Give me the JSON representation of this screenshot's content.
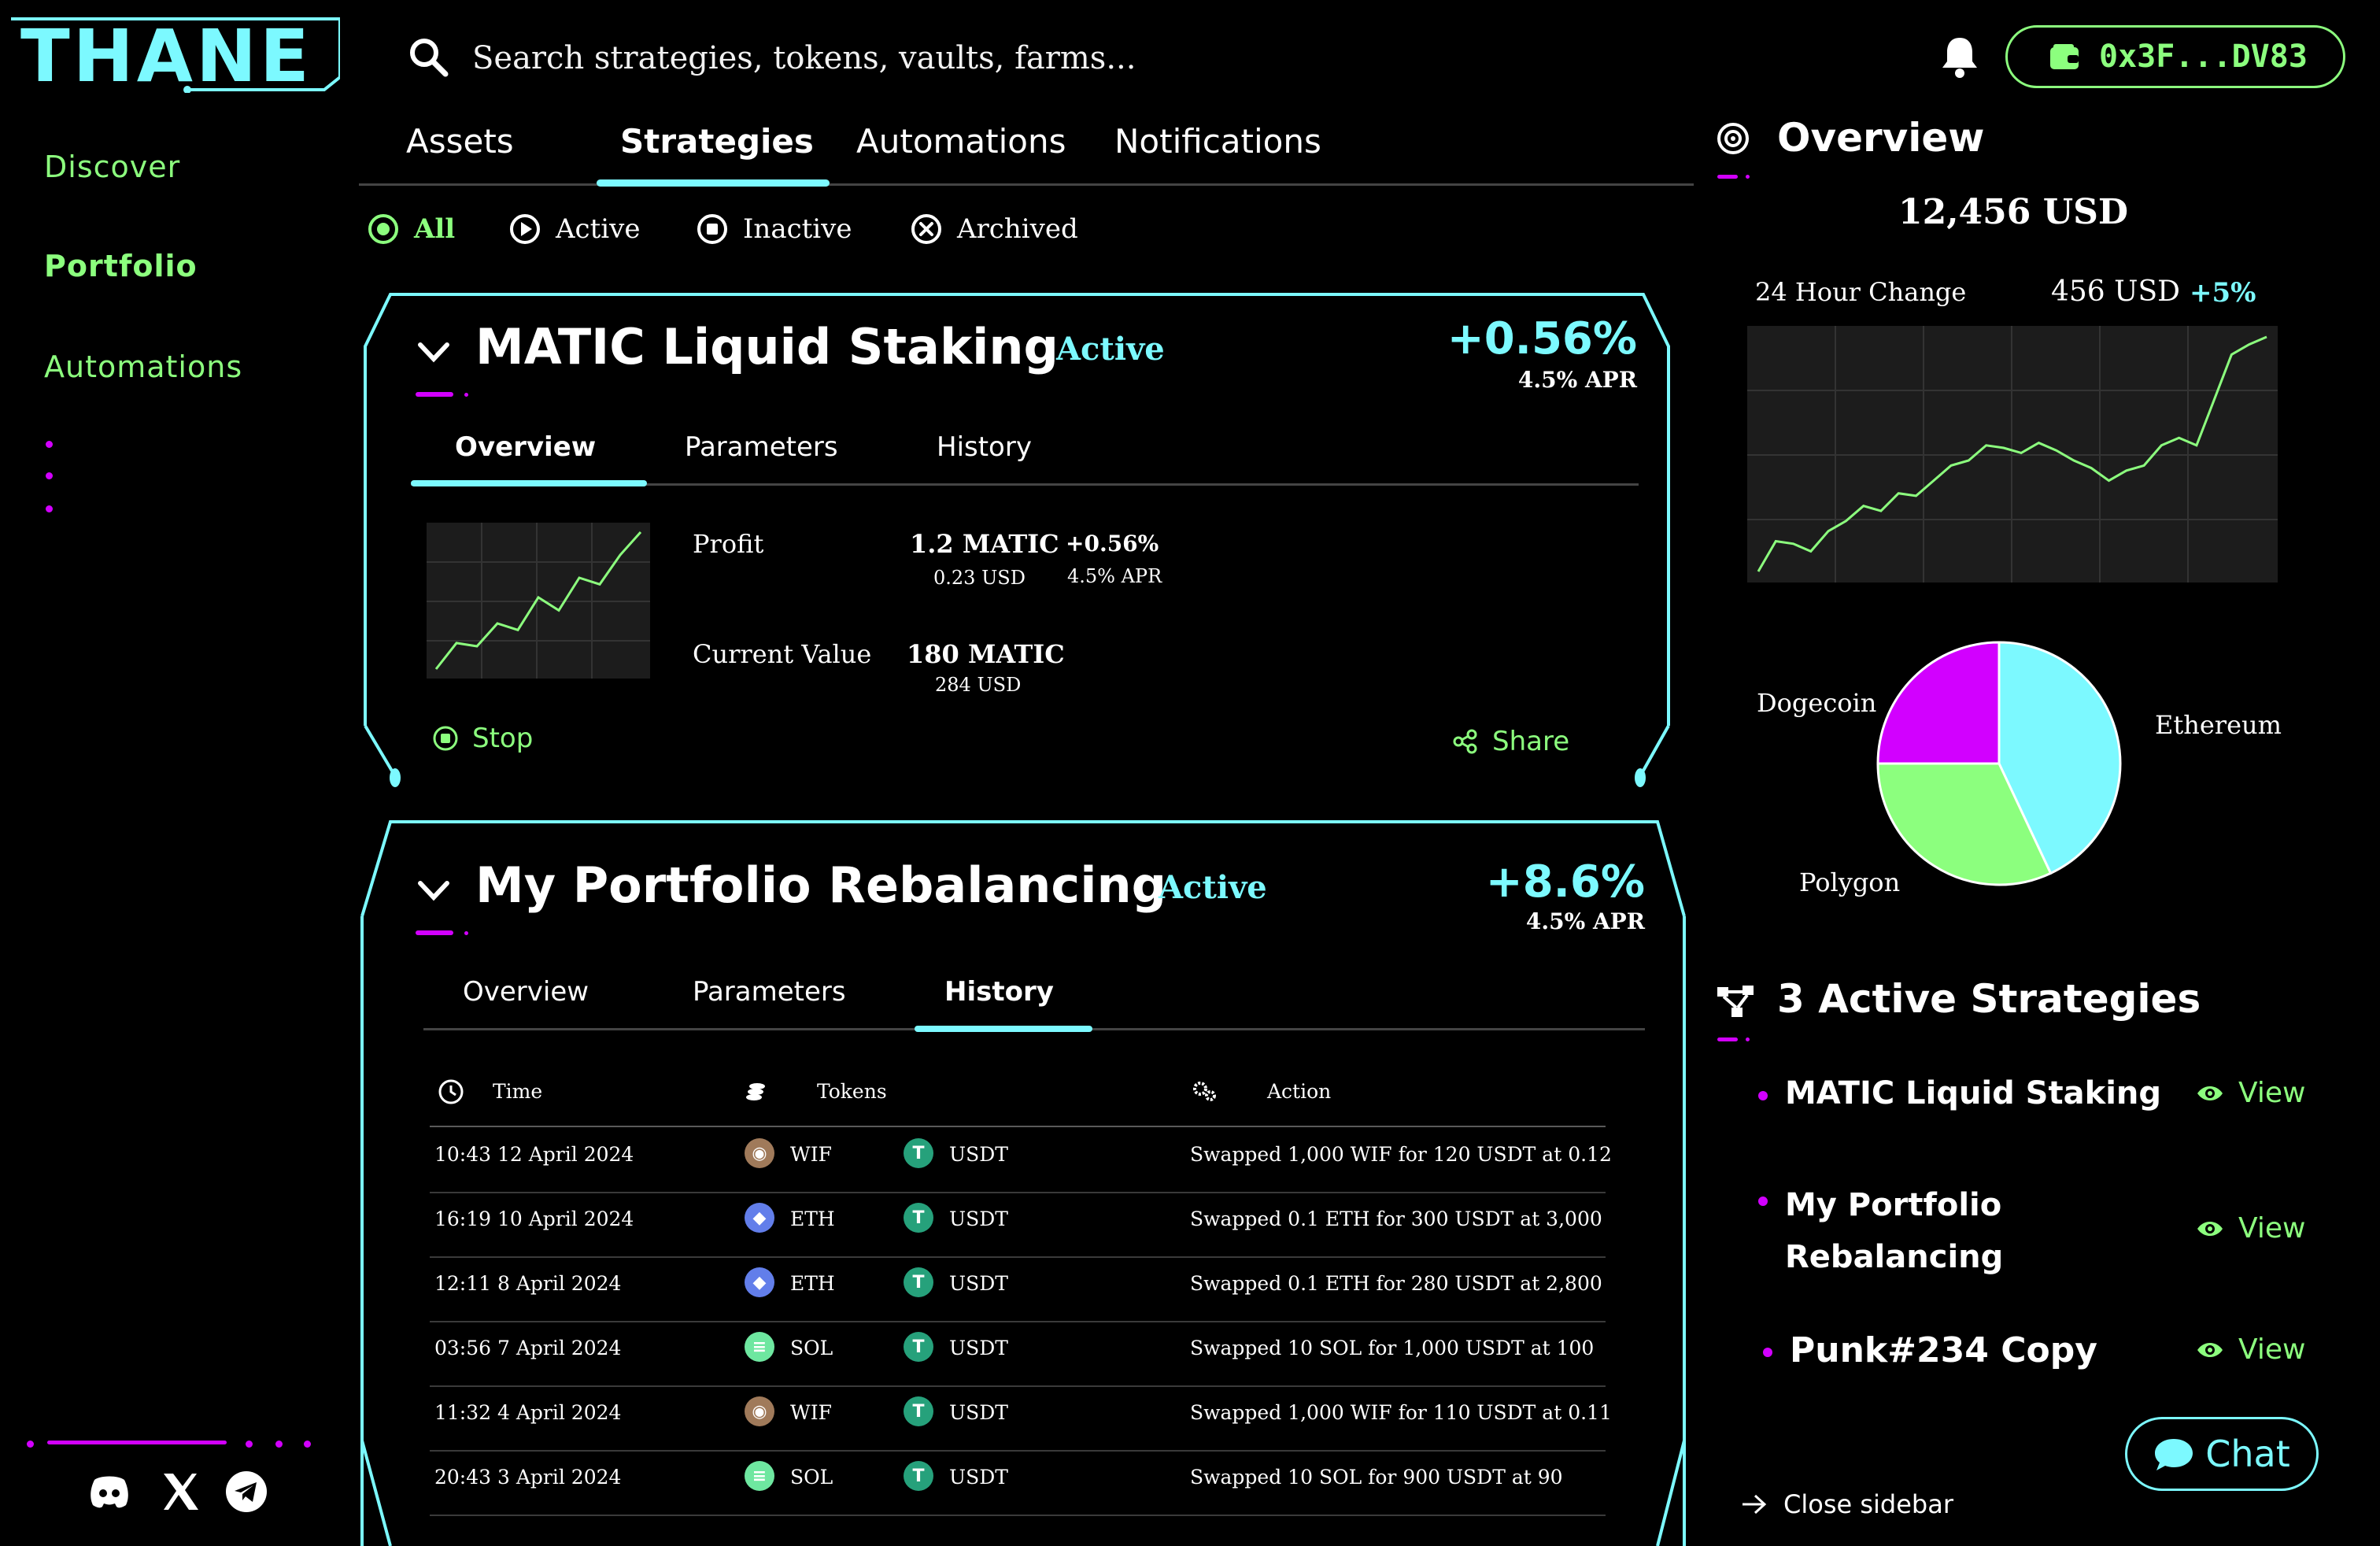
{
  "app": {
    "logo": "THANE"
  },
  "nav": {
    "items": [
      {
        "label": "Discover"
      },
      {
        "label": "Portfolio"
      },
      {
        "label": "Automations"
      }
    ],
    "socials": [
      "discord-icon",
      "x-icon",
      "telegram-icon"
    ]
  },
  "search": {
    "placeholder": "Search strategies, tokens, vaults, farms..."
  },
  "wallet": {
    "address": "0x3F...DV83"
  },
  "tabs": [
    {
      "label": "Assets",
      "active": false
    },
    {
      "label": "Strategies",
      "active": true
    },
    {
      "label": "Automations",
      "active": false
    },
    {
      "label": "Notifications",
      "active": false
    }
  ],
  "filters": [
    {
      "label": "All",
      "icon": "radio-selected-icon",
      "active": true
    },
    {
      "label": "Active",
      "icon": "play-circle-icon",
      "active": false
    },
    {
      "label": "Inactive",
      "icon": "stop-circle-icon",
      "active": false
    },
    {
      "label": "Archived",
      "icon": "x-circle-icon",
      "active": false
    }
  ],
  "strategies": [
    {
      "title": "MATIC Liquid Staking",
      "status": "Active",
      "change": "+0.56%",
      "apr": "4.5% APR",
      "tabs": [
        "Overview",
        "Parameters",
        "History"
      ],
      "active_tab": "Overview",
      "profit_label": "Profit",
      "profit_value": "1.2 MATIC",
      "profit_usd": "0.23 USD",
      "profit_pct": "+0.56%",
      "profit_apr": "4.5% APR",
      "current_value_label": "Current Value",
      "current_value": "180 MATIC",
      "current_value_usd": "284 USD",
      "stop_label": "Stop",
      "share_label": "Share",
      "sparkline": [
        2,
        10,
        9,
        16,
        14,
        24,
        20,
        30,
        28,
        37,
        44
      ]
    },
    {
      "title": "My Portfolio Rebalancing",
      "status": "Active",
      "change": "+8.6%",
      "apr": "4.5% APR",
      "tabs": [
        "Overview",
        "Parameters",
        "History"
      ],
      "active_tab": "History",
      "history": {
        "columns": [
          "Time",
          "Tokens",
          "Action"
        ],
        "rows": [
          {
            "time": "10:43 12 April 2024",
            "from": "WIF",
            "to": "USDT",
            "action": "Swapped 1,000 WIF for 120 USDT at 0.12"
          },
          {
            "time": "16:19 10 April 2024",
            "from": "ETH",
            "to": "USDT",
            "action": "Swapped 0.1 ETH for 300 USDT at 3,000"
          },
          {
            "time": "12:11 8 April 2024",
            "from": "ETH",
            "to": "USDT",
            "action": "Swapped 0.1 ETH for 280 USDT at 2,800"
          },
          {
            "time": "03:56 7 April 2024",
            "from": "SOL",
            "to": "USDT",
            "action": "Swapped 10 SOL for 1,000 USDT at 100"
          },
          {
            "time": "11:32 4 April 2024",
            "from": "WIF",
            "to": "USDT",
            "action": "Swapped 1,000 WIF for 110 USDT at 0.11"
          },
          {
            "time": "20:43 3 April 2024",
            "from": "SOL",
            "to": "USDT",
            "action": "Swapped 10 SOL for 900 USDT at 90"
          }
        ]
      }
    }
  ],
  "overview": {
    "title": "Overview",
    "total": "12,456 USD",
    "change_label": "24 Hour Change",
    "change_value": "456 USD",
    "change_pct": "+5%",
    "line": [
      2,
      14,
      13,
      10,
      18,
      22,
      28,
      26,
      33,
      32,
      38,
      44,
      46,
      52,
      51,
      49,
      53,
      50,
      46,
      43,
      38,
      42,
      44,
      52,
      55,
      52,
      70,
      88,
      92,
      95
    ],
    "allocation": [
      {
        "name": "Ethereum",
        "value": 43,
        "color": "#7cf9ff"
      },
      {
        "name": "Polygon",
        "value": 32,
        "color": "#8cff7e"
      },
      {
        "name": "Dogecoin",
        "value": 25,
        "color": "#d200ff"
      }
    ]
  },
  "active_strategies": {
    "title": "3 Active Strategies",
    "items": [
      {
        "name": "MATIC Liquid Staking",
        "view": "View"
      },
      {
        "name": "My Portfolio Rebalancing",
        "view": "View"
      },
      {
        "name": "Punk#234 Copy",
        "view": "View"
      }
    ]
  },
  "chat": {
    "label": "Chat"
  },
  "sidebar": {
    "close_label": "Close sidebar"
  },
  "colors": {
    "cyan": "#7cf9ff",
    "green": "#8cff7e",
    "magenta": "#d200ff",
    "background": "#000000"
  }
}
